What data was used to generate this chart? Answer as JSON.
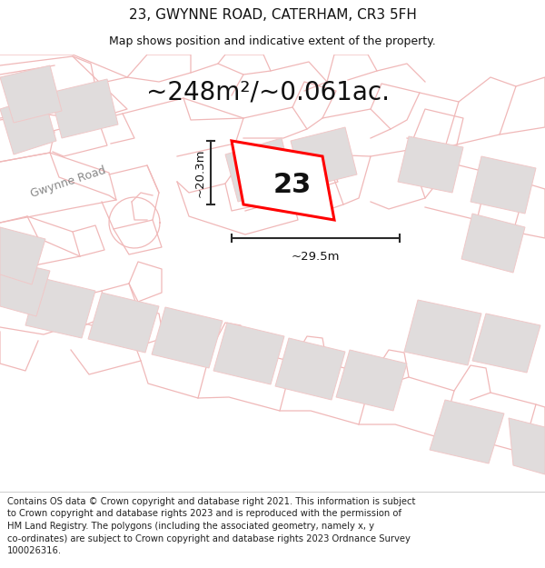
{
  "title": "23, GWYNNE ROAD, CATERHAM, CR3 5FH",
  "subtitle": "Map shows position and indicative extent of the property.",
  "area_label": "~248m²/~0.061ac.",
  "property_number": "23",
  "dim_width": "~29.5m",
  "dim_height": "~20.3m",
  "road_label": "Gwynne Road",
  "footer_text": "Contains OS data © Crown copyright and database right 2021. This information is subject to Crown copyright and database rights 2023 and is reproduced with the permission of HM Land Registry. The polygons (including the associated geometry, namely x, y co-ordinates) are subject to Crown copyright and database rights 2023 Ordnance Survey 100026316.",
  "bg_color": "#ffffff",
  "map_bg": "#f7f4f4",
  "building_fill": "#e0dcdc",
  "building_edge": "#f0c8c8",
  "parcel_edge": "#f0b8b8",
  "highlight_edge": "#ff0000",
  "dim_line_color": "#2a2a2a",
  "text_color": "#111111",
  "road_text_color": "#888888",
  "title_fontsize": 11,
  "subtitle_fontsize": 9,
  "area_fontsize": 20,
  "number_fontsize": 22,
  "dim_fontsize": 9.5,
  "road_fontsize": 9,
  "footer_fontsize": 7.2
}
